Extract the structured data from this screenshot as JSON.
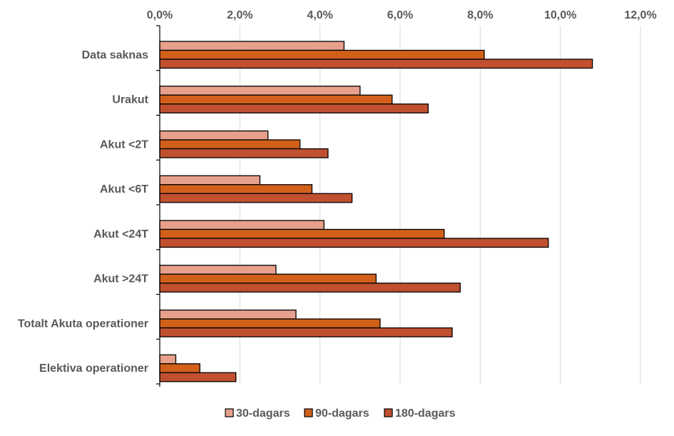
{
  "chart_data": {
    "type": "bar",
    "orientation": "horizontal",
    "categories": [
      "Data saknas",
      "Urakut",
      "Akut <2T",
      "Akut <6T",
      "Akut <24T",
      "Akut >24T",
      "Totalt Akuta operationer",
      "Elektiva operationer"
    ],
    "series": [
      {
        "name": "30-dagars",
        "color": "#E6A08C",
        "values": [
          4.6,
          5.0,
          2.7,
          2.5,
          4.1,
          2.9,
          3.4,
          0.4
        ]
      },
      {
        "name": "90-dagars",
        "color": "#D2601A",
        "values": [
          8.1,
          5.8,
          3.5,
          3.8,
          7.1,
          5.4,
          5.5,
          1.0
        ]
      },
      {
        "name": "180-dagars",
        "color": "#C0502F",
        "values": [
          10.8,
          6.7,
          4.2,
          4.8,
          9.7,
          7.5,
          7.3,
          1.9
        ]
      }
    ],
    "xlim": [
      0,
      12
    ],
    "xticks": [
      0,
      2,
      4,
      6,
      8,
      10,
      12
    ],
    "xtick_labels": [
      "0,0%",
      "2,0%",
      "4,0%",
      "6,0%",
      "8,0%",
      "10,0%",
      "12,0%"
    ],
    "x_axis_position": "top",
    "grid": true,
    "legend_position": "bottom"
  }
}
